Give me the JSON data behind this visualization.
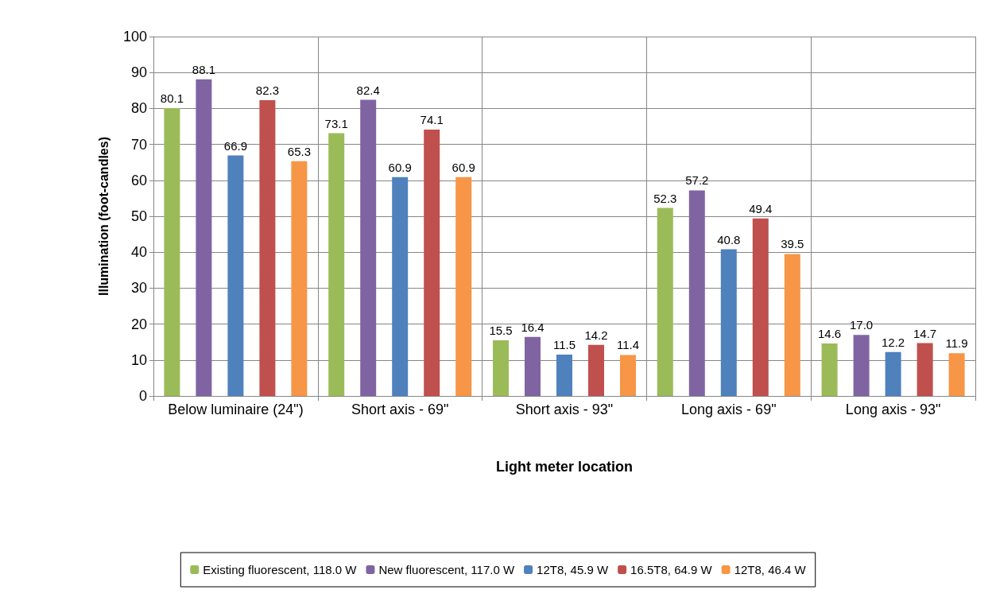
{
  "chart_data": {
    "type": "bar",
    "xlabel": "Light meter location",
    "ylabel": "Illumination (foot-candles)",
    "categories": [
      "Below luminaire (24\")",
      "Short axis - 69\"",
      "Short axis - 93\"",
      "Long axis - 69\"",
      "Long axis - 93\""
    ],
    "series": [
      {
        "name": "Existing fluorescent, 118.0 W",
        "color": "#9bbb59",
        "values": [
          80.1,
          73.1,
          15.5,
          52.3,
          14.6
        ],
        "value_labels": [
          "80.1",
          "73.1",
          "15.5",
          "52.3",
          "14.6"
        ]
      },
      {
        "name": "New fluorescent, 117.0 W",
        "color": "#8064a2",
        "values": [
          88.1,
          82.4,
          16.4,
          57.2,
          17.0
        ],
        "value_labels": [
          "88.1",
          "82.4",
          "16.4",
          "57.2",
          "17.0"
        ]
      },
      {
        "name": "12T8, 45.9 W",
        "color": "#4f81bd",
        "values": [
          66.9,
          60.9,
          11.5,
          40.8,
          12.2
        ],
        "value_labels": [
          "66.9",
          "60.9",
          "11.5",
          "40.8",
          "12.2"
        ]
      },
      {
        "name": "16.5T8, 64.9 W",
        "color": "#c0504d",
        "values": [
          82.3,
          74.1,
          14.2,
          49.4,
          14.7
        ],
        "value_labels": [
          "82.3",
          "74.1",
          "14.2",
          "49.4",
          "14.7"
        ]
      },
      {
        "name": "12T8, 46.4 W",
        "color": "#f79646",
        "values": [
          65.3,
          60.9,
          11.4,
          39.5,
          11.9
        ],
        "value_labels": [
          "65.3",
          "60.9",
          "11.4",
          "39.5",
          "11.9"
        ]
      }
    ],
    "ylim": [
      0,
      100
    ],
    "yticks": [
      0,
      10,
      20,
      30,
      40,
      50,
      60,
      70,
      80,
      90,
      100
    ],
    "grid": true,
    "legend": "bottom"
  }
}
